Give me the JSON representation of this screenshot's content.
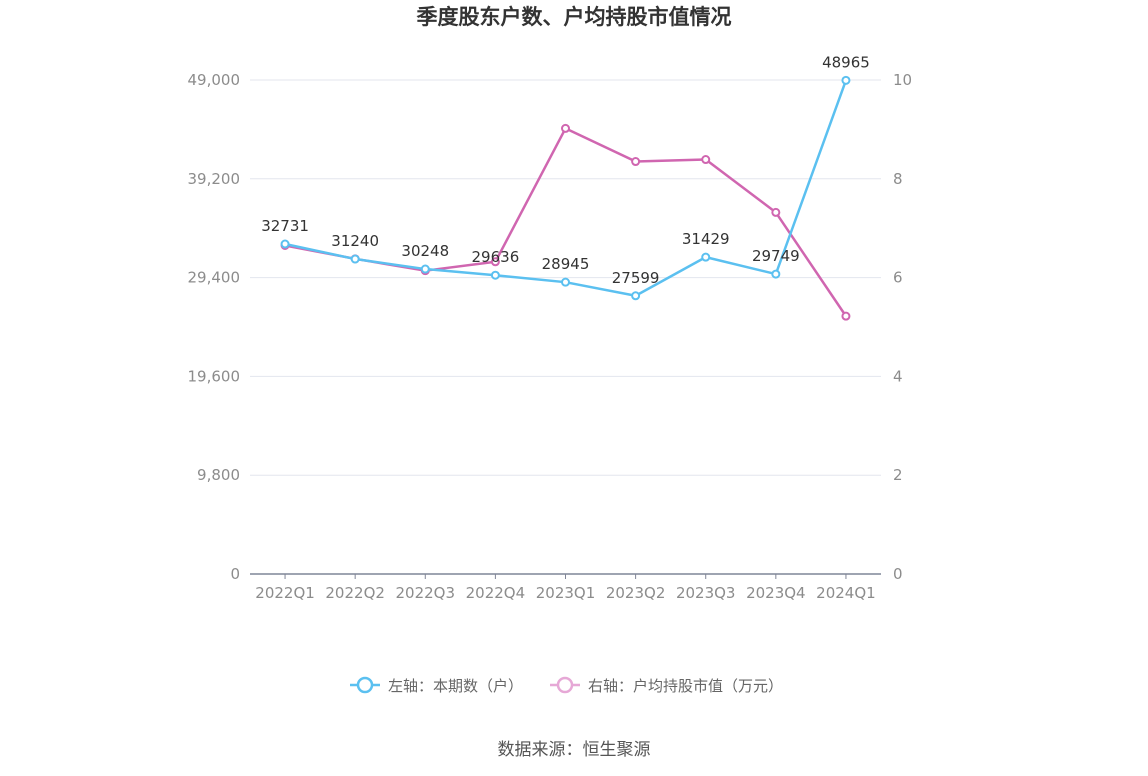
{
  "chart_data": {
    "type": "line",
    "title": "季度股东户数、户均持股市值情况",
    "categories": [
      "2022Q1",
      "2022Q2",
      "2022Q3",
      "2022Q4",
      "2023Q1",
      "2023Q2",
      "2023Q3",
      "2023Q4",
      "2024Q1"
    ],
    "y_left": {
      "ticks": [
        "0",
        "9,800",
        "19,600",
        "29,400",
        "39,200",
        "49,000"
      ],
      "range": [
        0,
        49000
      ]
    },
    "y_right": {
      "ticks": [
        "0",
        "2",
        "4",
        "6",
        "8",
        "10"
      ],
      "range": [
        0,
        10
      ]
    },
    "series": [
      {
        "name": "左轴：本期数（户）",
        "axis": "left",
        "color": "#5bc0f0",
        "values": [
          32731,
          31240,
          30248,
          29636,
          28945,
          27599,
          31429,
          29749,
          48965
        ],
        "labels": [
          "32731",
          "31240",
          "30248",
          "29636",
          "28945",
          "27599",
          "31429",
          "29749",
          "48965"
        ]
      },
      {
        "name": "右轴：户均持股市值（万元）",
        "axis": "right",
        "color": "#d066b0",
        "values": [
          6.65,
          6.38,
          6.14,
          6.32,
          9.02,
          8.35,
          8.39,
          7.32,
          5.22
        ]
      }
    ],
    "grid": true,
    "legend_position": "bottom"
  },
  "source": "数据来源：恒生聚源"
}
